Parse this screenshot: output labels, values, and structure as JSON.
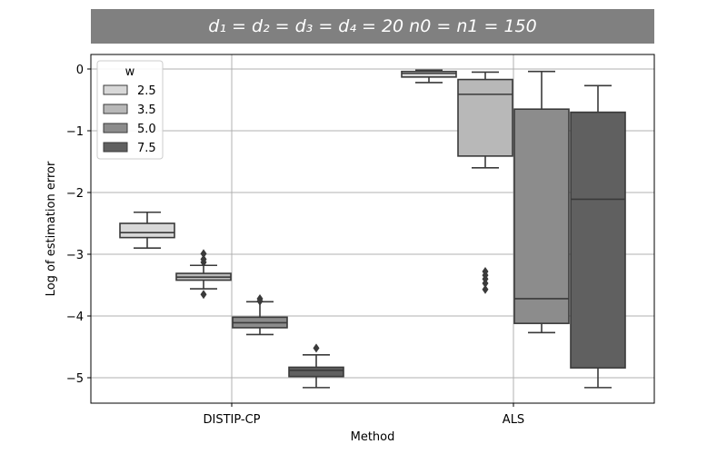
{
  "chart_data": {
    "type": "box",
    "title": "d₁ = d₂ = d₃ = d₄ = 20    n0 = n1 = 150",
    "xlabel": "Method",
    "ylabel": "Log of estimation error",
    "categories": [
      "DISTIP-CP",
      "ALS"
    ],
    "ylim": [
      -5.45,
      0.25
    ],
    "yticks": [
      0,
      -1,
      -2,
      -3,
      -4,
      -5
    ],
    "ytick_labels": [
      "0",
      "−1",
      "−2",
      "−3",
      "−4",
      "−5"
    ],
    "grid": true,
    "legend": {
      "title": "w",
      "placement": "top-left"
    },
    "series": [
      {
        "name": "2.5",
        "color": "#d8d8d8",
        "boxes": [
          {
            "q1": -2.73,
            "median": -2.65,
            "q3": -2.5,
            "whisker_low": -2.9,
            "whisker_high": -2.32,
            "outliers": []
          },
          {
            "q1": -0.13,
            "median": -0.07,
            "q3": -0.04,
            "whisker_low": -0.22,
            "whisker_high": -0.02,
            "outliers": []
          }
        ]
      },
      {
        "name": "3.5",
        "color": "#b8b8b8",
        "boxes": [
          {
            "q1": -3.42,
            "median": -3.37,
            "q3": -3.31,
            "whisker_low": -3.56,
            "whisker_high": -3.18,
            "outliers": [
              -2.99,
              -3.08,
              -3.13,
              -3.65
            ]
          },
          {
            "q1": -1.41,
            "median": -0.41,
            "q3": -0.17,
            "whisker_low": -1.6,
            "whisker_high": -0.05,
            "outliers": [
              -3.28,
              -3.34,
              -3.4,
              -3.47,
              -3.57
            ]
          }
        ]
      },
      {
        "name": "5.0",
        "color": "#8c8c8c",
        "boxes": [
          {
            "q1": -4.19,
            "median": -4.11,
            "q3": -4.02,
            "whisker_low": -4.3,
            "whisker_high": -3.77,
            "outliers": [
              -3.72,
              -3.76
            ]
          },
          {
            "q1": -4.12,
            "median": -3.72,
            "q3": -0.65,
            "whisker_low": -4.27,
            "whisker_high": -0.04,
            "outliers": []
          }
        ]
      },
      {
        "name": "7.5",
        "color": "#606060",
        "boxes": [
          {
            "q1": -4.98,
            "median": -4.88,
            "q3": -4.83,
            "whisker_low": -5.16,
            "whisker_high": -4.63,
            "outliers": [
              -4.52
            ]
          },
          {
            "q1": -4.84,
            "median": -2.11,
            "q3": -0.7,
            "whisker_low": -5.16,
            "whisker_high": -0.27,
            "outliers": []
          }
        ]
      }
    ]
  }
}
